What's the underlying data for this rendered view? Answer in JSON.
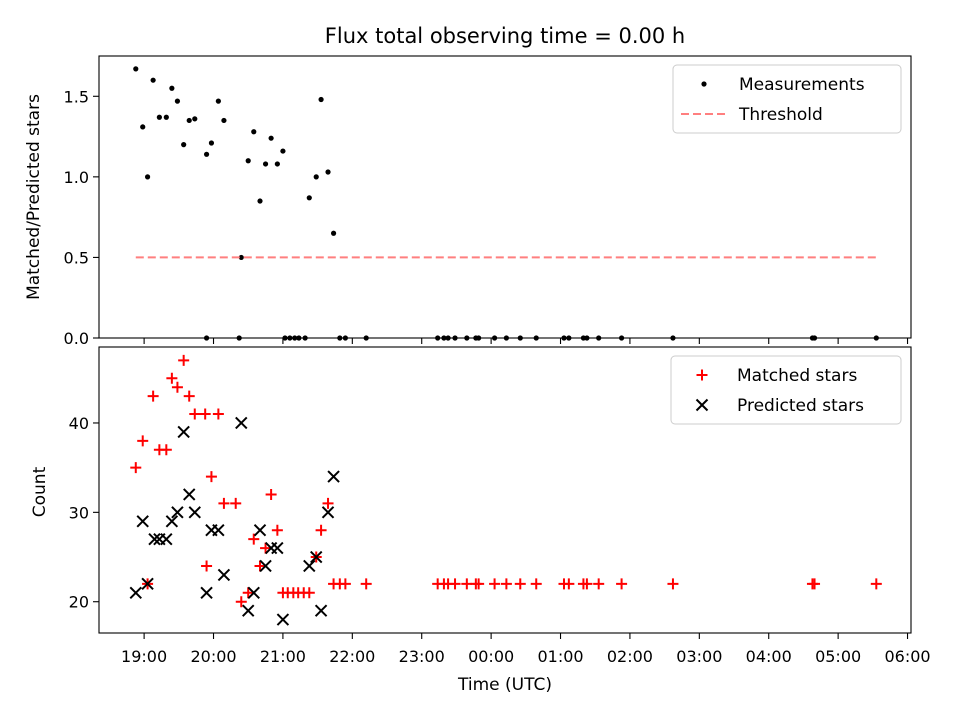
{
  "chart_data": [
    {
      "type": "scatter",
      "title": "Flux total observing time = 0.00 h",
      "xlabel": "",
      "ylabel": "Matched/Predicted stars",
      "xlim": [
        18.35,
        30.05
      ],
      "ylim": [
        0,
        1.75
      ],
      "yticks": [
        0.0,
        0.5,
        1.0,
        1.5
      ],
      "ytick_labels": [
        "0.0",
        "0.5",
        "1.0",
        "1.5"
      ],
      "legend_position": "top-right",
      "series": [
        {
          "name": "Measurements",
          "marker": "dot",
          "color": "#000000",
          "points": [
            [
              18.88,
              1.67
            ],
            [
              18.98,
              1.31
            ],
            [
              19.05,
              1.0
            ],
            [
              19.13,
              1.6
            ],
            [
              19.22,
              1.37
            ],
            [
              19.32,
              1.37
            ],
            [
              19.4,
              1.55
            ],
            [
              19.48,
              1.47
            ],
            [
              19.57,
              1.2
            ],
            [
              19.65,
              1.35
            ],
            [
              19.73,
              1.36
            ],
            [
              19.9,
              1.14
            ],
            [
              19.97,
              1.21
            ],
            [
              20.07,
              1.47
            ],
            [
              20.15,
              1.35
            ],
            [
              20.4,
              0.5
            ],
            [
              20.5,
              1.1
            ],
            [
              20.58,
              1.28
            ],
            [
              20.67,
              0.85
            ],
            [
              20.75,
              1.08
            ],
            [
              20.83,
              1.24
            ],
            [
              20.92,
              1.08
            ],
            [
              21.0,
              1.16
            ],
            [
              21.38,
              0.87
            ],
            [
              21.48,
              1.0
            ],
            [
              21.55,
              1.48
            ],
            [
              21.65,
              1.03
            ],
            [
              21.73,
              0.65
            ],
            [
              19.9,
              0.0
            ],
            [
              20.37,
              0.0
            ],
            [
              21.03,
              0.0
            ],
            [
              21.1,
              0.0
            ],
            [
              21.17,
              0.0
            ],
            [
              21.23,
              0.0
            ],
            [
              21.32,
              0.0
            ],
            [
              21.82,
              0.0
            ],
            [
              21.9,
              0.0
            ],
            [
              22.2,
              0.0
            ],
            [
              23.23,
              0.0
            ],
            [
              23.32,
              0.0
            ],
            [
              23.38,
              0.0
            ],
            [
              23.48,
              0.0
            ],
            [
              23.65,
              0.0
            ],
            [
              23.78,
              0.0
            ],
            [
              23.82,
              0.0
            ],
            [
              24.05,
              0.0
            ],
            [
              24.22,
              0.0
            ],
            [
              24.42,
              0.0
            ],
            [
              24.65,
              0.0
            ],
            [
              25.05,
              0.0
            ],
            [
              25.12,
              0.0
            ],
            [
              25.33,
              0.0
            ],
            [
              25.38,
              0.0
            ],
            [
              25.55,
              0.0
            ],
            [
              25.88,
              0.0
            ],
            [
              26.62,
              0.0
            ],
            [
              28.63,
              0.0
            ],
            [
              28.66,
              0.0
            ],
            [
              29.55,
              0.0
            ]
          ]
        },
        {
          "name": "Threshold",
          "style": "dashed-line",
          "color": "#ff7f7f",
          "points": [
            [
              18.88,
              0.5
            ],
            [
              29.55,
              0.5
            ]
          ]
        }
      ]
    },
    {
      "type": "scatter",
      "title": "",
      "xlabel": "Time (UTC)",
      "ylabel": "Count",
      "xlim": [
        18.35,
        30.05
      ],
      "ylim": [
        16.5,
        48.5
      ],
      "yticks": [
        20,
        30,
        40
      ],
      "ytick_labels": [
        "20",
        "30",
        "40"
      ],
      "xticks": [
        19,
        20,
        21,
        22,
        23,
        24,
        25,
        26,
        27,
        28,
        29,
        30
      ],
      "xtick_labels": [
        "19:00",
        "20:00",
        "21:00",
        "22:00",
        "23:00",
        "00:00",
        "01:00",
        "02:00",
        "03:00",
        "04:00",
        "05:00",
        "06:00"
      ],
      "legend_position": "top-right",
      "series": [
        {
          "name": "Matched stars",
          "marker": "plus",
          "color": "#ff0000",
          "points": [
            [
              18.88,
              35
            ],
            [
              18.98,
              38
            ],
            [
              19.05,
              22
            ],
            [
              19.13,
              43
            ],
            [
              19.22,
              37
            ],
            [
              19.32,
              37
            ],
            [
              19.4,
              45
            ],
            [
              19.48,
              44
            ],
            [
              19.57,
              47
            ],
            [
              19.65,
              43
            ],
            [
              19.73,
              41
            ],
            [
              19.88,
              41
            ],
            [
              19.9,
              24
            ],
            [
              19.97,
              34
            ],
            [
              20.07,
              41
            ],
            [
              20.15,
              31
            ],
            [
              20.32,
              31
            ],
            [
              20.4,
              20
            ],
            [
              20.5,
              21
            ],
            [
              20.58,
              27
            ],
            [
              20.67,
              24
            ],
            [
              20.75,
              26
            ],
            [
              20.83,
              32
            ],
            [
              20.92,
              28
            ],
            [
              21.0,
              21
            ],
            [
              21.07,
              21
            ],
            [
              21.15,
              21
            ],
            [
              21.22,
              21
            ],
            [
              21.3,
              21
            ],
            [
              21.38,
              21
            ],
            [
              21.48,
              25
            ],
            [
              21.55,
              28
            ],
            [
              21.65,
              31
            ],
            [
              21.73,
              22
            ],
            [
              21.82,
              22
            ],
            [
              21.9,
              22
            ],
            [
              22.2,
              22
            ],
            [
              23.23,
              22
            ],
            [
              23.32,
              22
            ],
            [
              23.38,
              22
            ],
            [
              23.48,
              22
            ],
            [
              23.65,
              22
            ],
            [
              23.78,
              22
            ],
            [
              23.82,
              22
            ],
            [
              24.05,
              22
            ],
            [
              24.22,
              22
            ],
            [
              24.42,
              22
            ],
            [
              24.65,
              22
            ],
            [
              25.05,
              22
            ],
            [
              25.12,
              22
            ],
            [
              25.33,
              22
            ],
            [
              25.38,
              22
            ],
            [
              25.55,
              22
            ],
            [
              25.88,
              22
            ],
            [
              26.62,
              22
            ],
            [
              28.63,
              22
            ],
            [
              28.66,
              22
            ],
            [
              29.55,
              22
            ]
          ]
        },
        {
          "name": "Predicted stars",
          "marker": "x",
          "color": "#000000",
          "points": [
            [
              18.88,
              21
            ],
            [
              18.98,
              29
            ],
            [
              19.05,
              22
            ],
            [
              19.15,
              27
            ],
            [
              19.22,
              27
            ],
            [
              19.32,
              27
            ],
            [
              19.4,
              29
            ],
            [
              19.48,
              30
            ],
            [
              19.57,
              39
            ],
            [
              19.65,
              32
            ],
            [
              19.73,
              30
            ],
            [
              19.9,
              21
            ],
            [
              19.97,
              28
            ],
            [
              20.07,
              28
            ],
            [
              20.15,
              23
            ],
            [
              20.4,
              40
            ],
            [
              20.5,
              19
            ],
            [
              20.58,
              21
            ],
            [
              20.67,
              28
            ],
            [
              20.75,
              24
            ],
            [
              20.83,
              26
            ],
            [
              20.92,
              26
            ],
            [
              21.0,
              18
            ],
            [
              21.38,
              24
            ],
            [
              21.48,
              25
            ],
            [
              21.55,
              19
            ],
            [
              21.65,
              30
            ],
            [
              21.73,
              34
            ]
          ]
        }
      ]
    }
  ]
}
